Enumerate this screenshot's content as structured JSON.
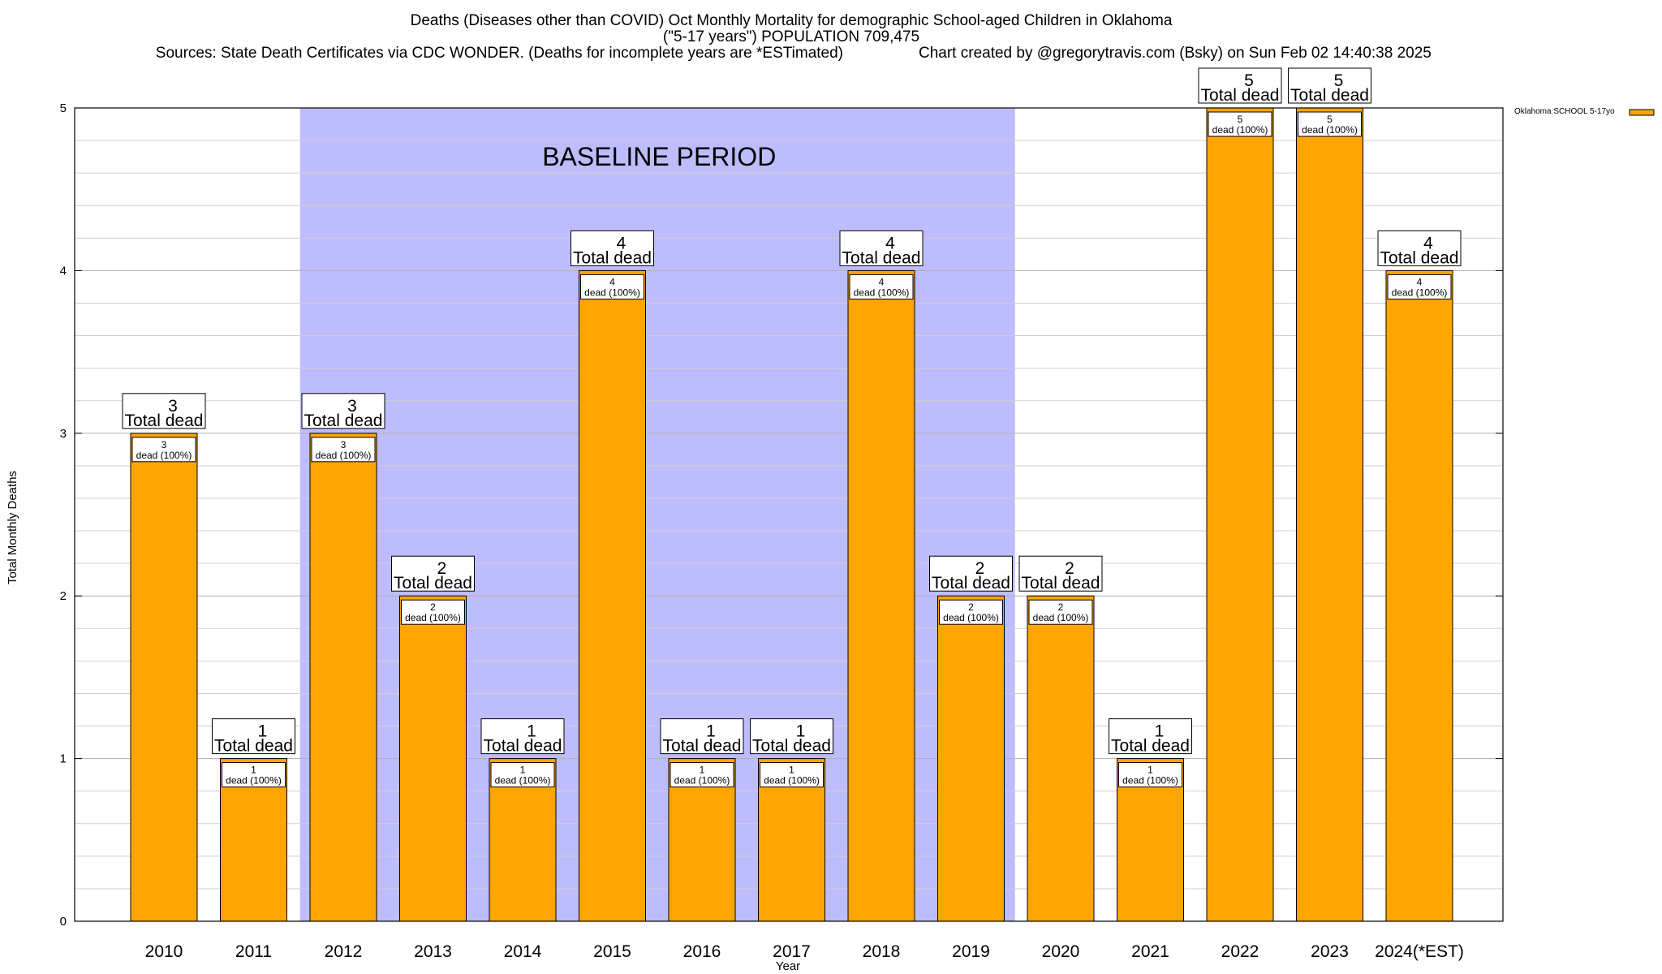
{
  "chart_data": {
    "type": "bar",
    "title_lines": [
      "Deaths (Diseases other than COVID) Oct Monthly Mortality for demographic School-aged Children in Oklahoma",
      "(\"5-17 years\") POPULATION 709,475"
    ],
    "sources": "Sources: State Death Certificates via CDC WONDER. (Deaths for incomplete years are *ESTimated)",
    "credit": "Chart created by @gregorytravis.com (Bsky) on Sun Feb 02 14:40:38 2025",
    "xlabel": "Year",
    "ylabel": "Total Monthly Deaths",
    "ylim": [
      0,
      5
    ],
    "yticks": [
      0,
      1,
      2,
      3,
      4,
      5
    ],
    "categories": [
      "2010",
      "2011",
      "2012",
      "2013",
      "2014",
      "2015",
      "2016",
      "2017",
      "2018",
      "2019",
      "2020",
      "2021",
      "2022",
      "2023",
      "2024(*EST)"
    ],
    "series": [
      {
        "name": "Oklahoma SCHOOL 5-17yo",
        "color": "#FFA500",
        "values": [
          3,
          1,
          3,
          2,
          1,
          4,
          1,
          1,
          4,
          2,
          2,
          1,
          5,
          5,
          4
        ]
      }
    ],
    "total_label_suffix": "Total dead",
    "inner_label_suffix": "dead (100%)",
    "baseline": {
      "label": "BASELINE PERIOD",
      "from_category": "2012",
      "to_category": "2019",
      "color": "#BDBDFD"
    },
    "grid": true,
    "legend_position": "top-right"
  }
}
